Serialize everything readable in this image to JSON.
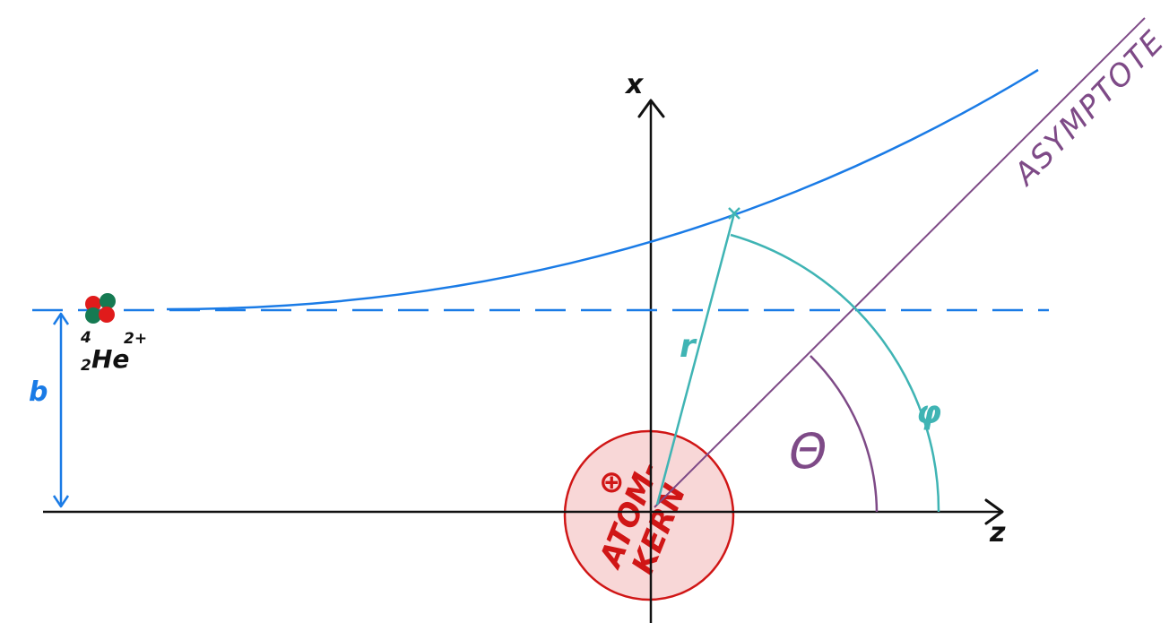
{
  "labels": {
    "x_axis": "x",
    "z_axis": "z",
    "impact_parameter": "b",
    "radius": "r",
    "phi": "φ",
    "theta": "Θ",
    "asymptote": "ASYMPTOTE",
    "nucleus_line1": "ATOM-",
    "nucleus_line2": "KERN",
    "nucleus_charge": "⊕",
    "particle_mass_number": "4",
    "particle_atomic_number": "2",
    "particle_symbol": "He",
    "particle_charge": "2+"
  },
  "colors": {
    "axes": "#111111",
    "trajectory": "#1a7be6",
    "radius_and_phi": "#3fb4b4",
    "asymptote_and_theta": "#7e4a87",
    "nucleus_stroke": "#d01616",
    "nucleus_fill": "#f8d7d7",
    "nucleon_red": "#e01b1b",
    "nucleon_green": "#157a52"
  }
}
